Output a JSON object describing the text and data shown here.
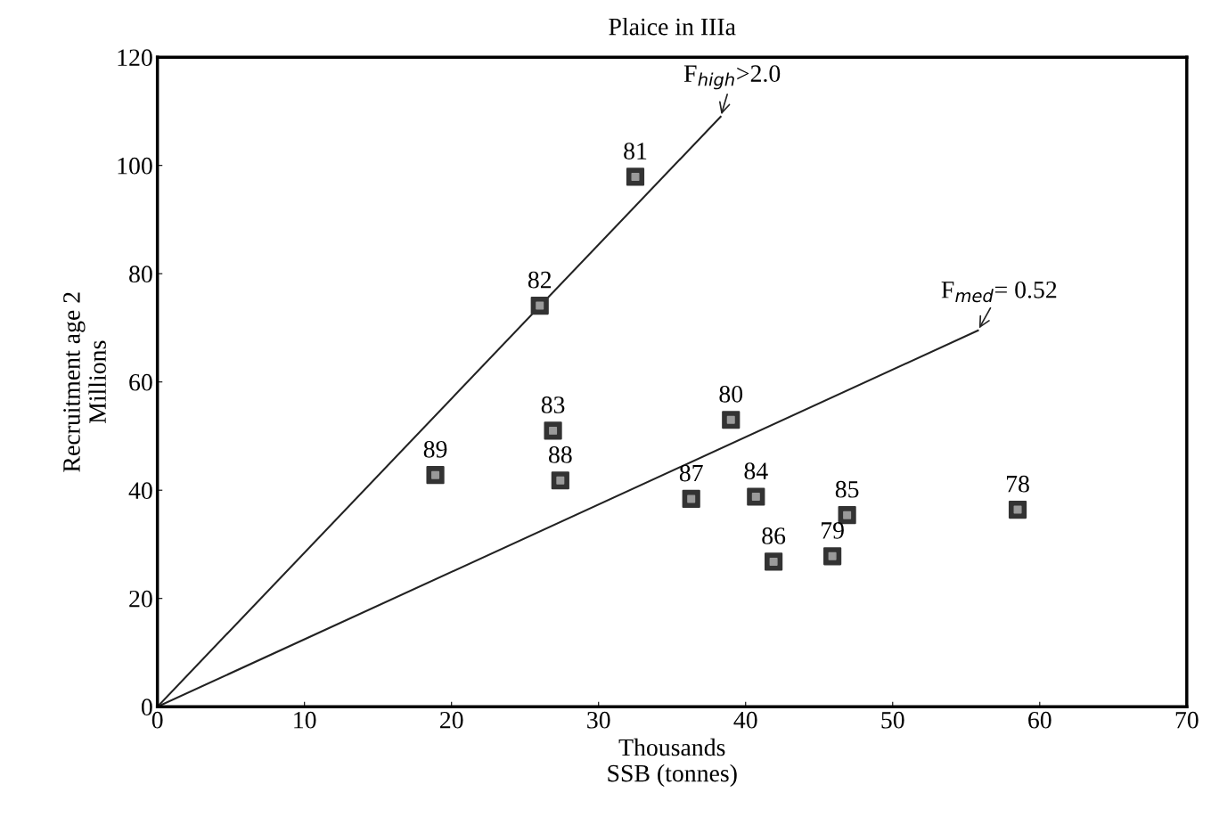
{
  "chart_data": {
    "type": "scatter",
    "title": "Plaice in IIIa",
    "xlabel": "Thousands\nSSB (tonnes)",
    "ylabel": "Recruitment age 2\nMillions",
    "xlim": [
      0,
      70
    ],
    "xticks": [
      0,
      10,
      20,
      30,
      40,
      50,
      60,
      70
    ],
    "ylim": [
      0,
      120
    ],
    "yticks": [
      0,
      20,
      40,
      60,
      80,
      100,
      120
    ],
    "grid": false,
    "legend": false,
    "marker": "square",
    "series": [
      {
        "color": "#333333",
        "x": [
          58.5,
          45.9,
          39.0,
          32.5,
          26.0,
          26.9,
          40.7,
          46.9,
          41.9,
          36.3,
          27.4,
          18.9
        ],
        "values": [
          36.4,
          27.8,
          53.0,
          97.9,
          74.1,
          51.0,
          38.8,
          35.4,
          26.8,
          38.4,
          41.8,
          42.8
        ]
      },
      {
        "type": "line",
        "color": "#222222",
        "line_style": "solid",
        "marker": "none",
        "x": [
          0,
          38.3
        ],
        "values": [
          0,
          109.0
        ]
      },
      {
        "type": "line",
        "color": "#222222",
        "line_style": "solid",
        "marker": "none",
        "x": [
          0,
          55.8
        ],
        "values": [
          0,
          69.5
        ]
      }
    ],
    "annotations": [
      {
        "text": "78",
        "x": 58.5,
        "y": 36.4
      },
      {
        "text": "79",
        "x": 45.9,
        "y": 27.8
      },
      {
        "text": "80",
        "x": 39.0,
        "y": 53.0
      },
      {
        "text": "81",
        "x": 32.5,
        "y": 97.9
      },
      {
        "text": "82",
        "x": 26.0,
        "y": 74.1
      },
      {
        "text": "83",
        "x": 26.9,
        "y": 51.0
      },
      {
        "text": "84",
        "x": 40.7,
        "y": 38.8
      },
      {
        "text": "85",
        "x": 46.9,
        "y": 35.4
      },
      {
        "text": "86",
        "x": 41.9,
        "y": 26.8
      },
      {
        "text": "87",
        "x": 36.3,
        "y": 38.4
      },
      {
        "text": "88",
        "x": 27.4,
        "y": 41.8
      },
      {
        "text": "89",
        "x": 18.9,
        "y": 42.8
      },
      {
        "text": "F$_{high}$>2.0",
        "x": 38.3,
        "y": 109.0
      },
      {
        "text": "F$_{med}$= 0.52",
        "x": 55.8,
        "y": 69.5
      }
    ]
  }
}
